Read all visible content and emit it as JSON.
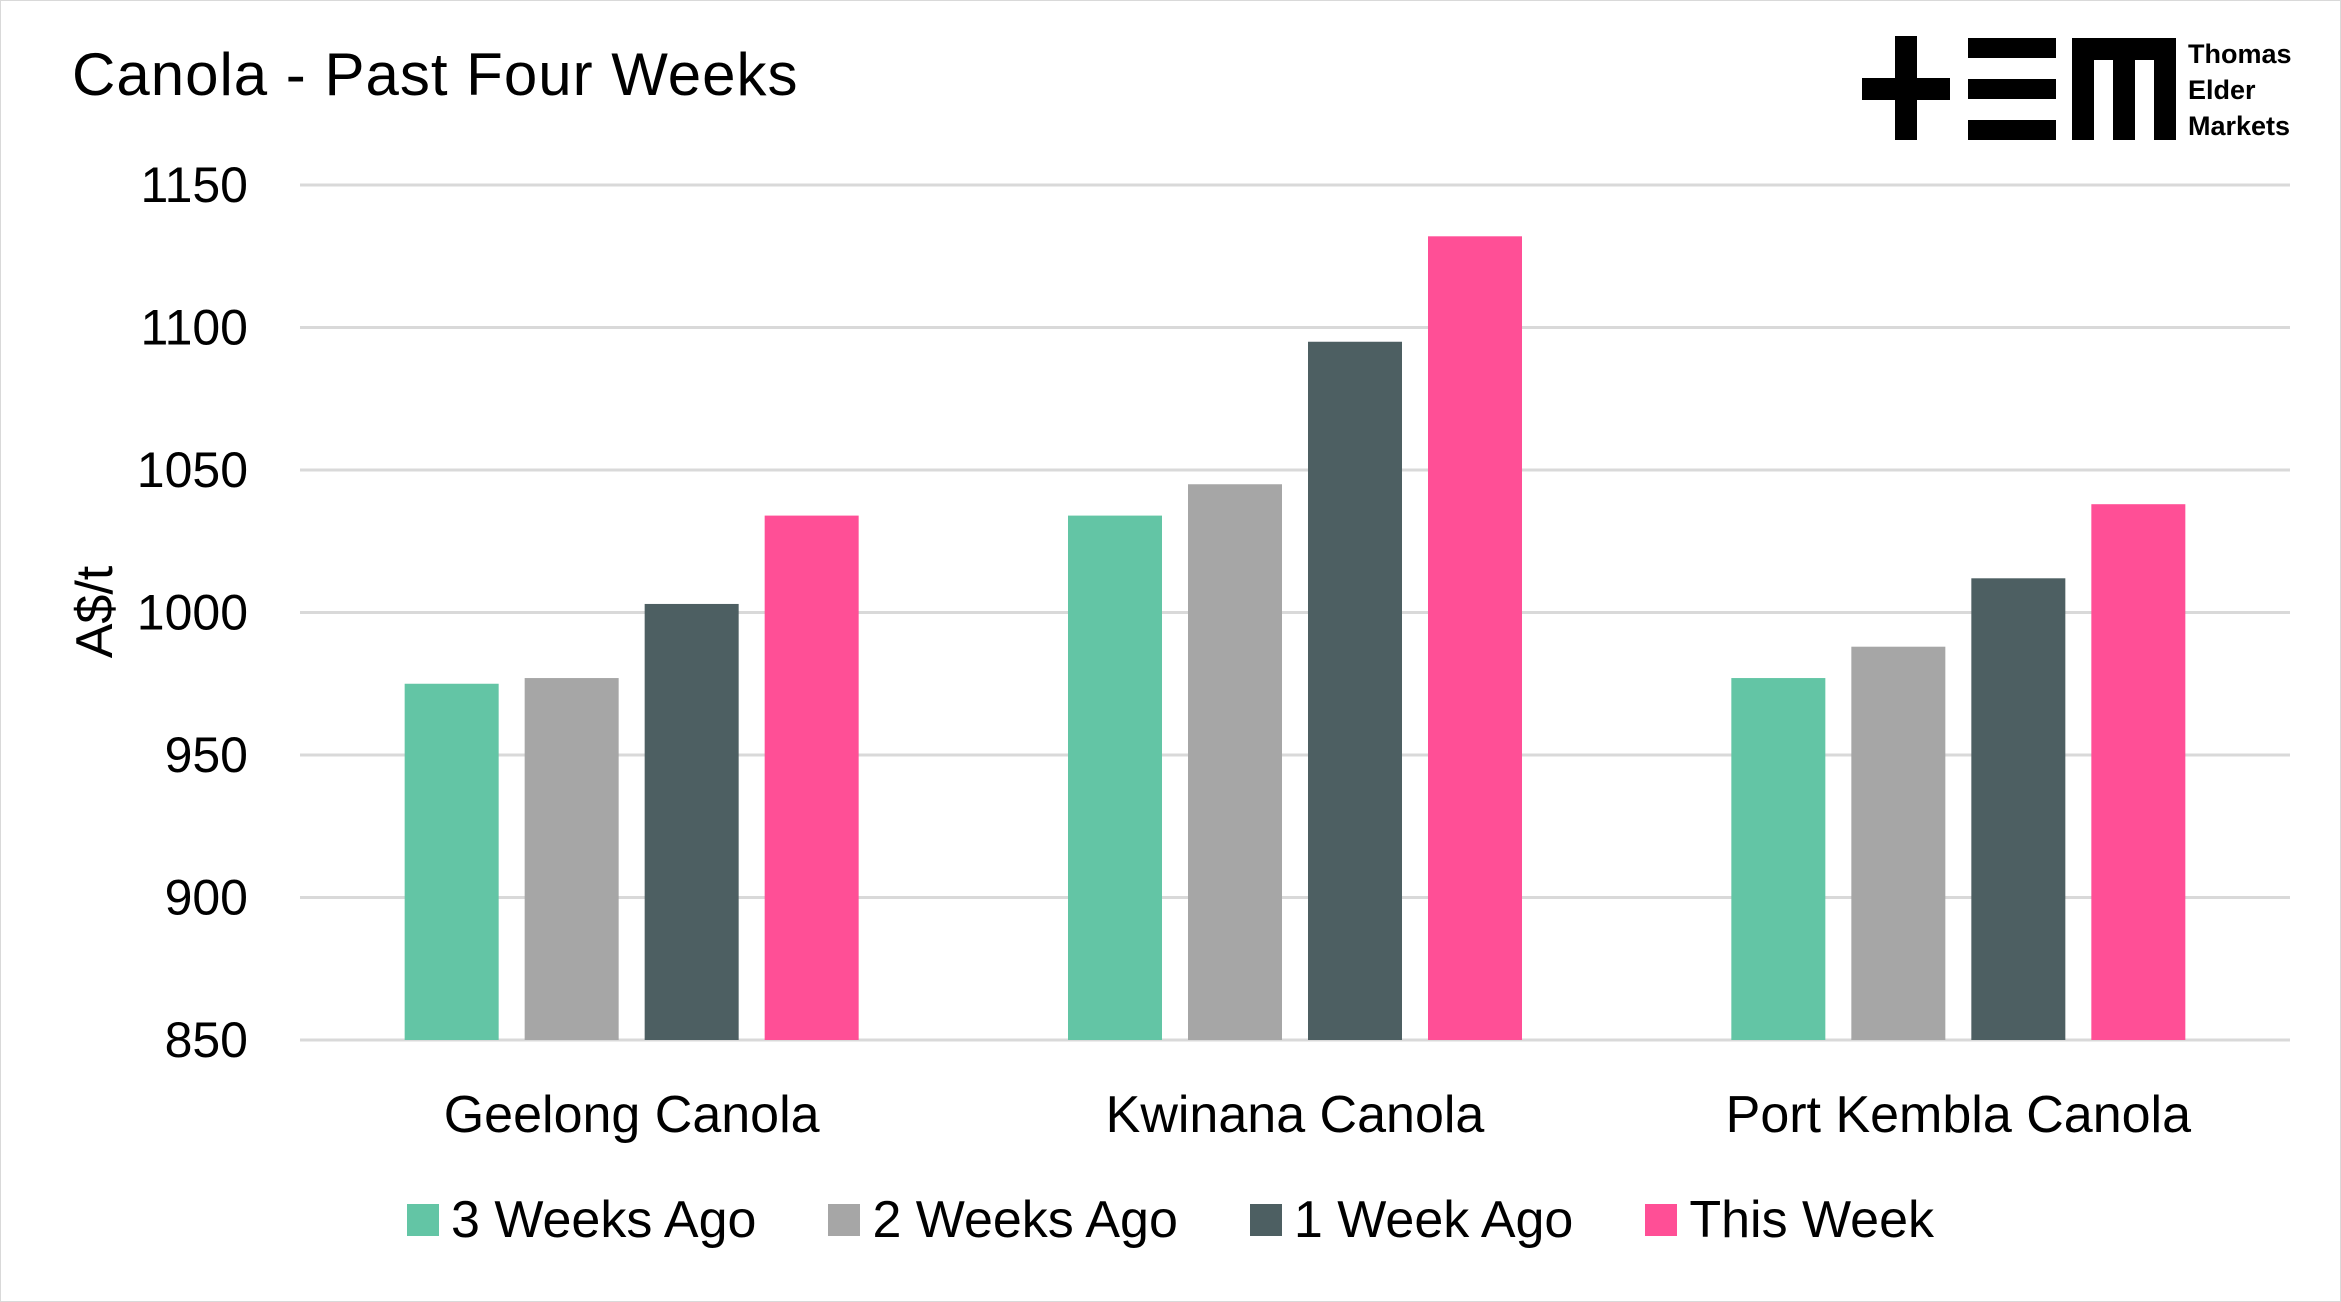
{
  "header": {
    "title": "Canola - Past Four Weeks",
    "logo_lines": [
      "Thomas",
      "Elder",
      "Markets"
    ]
  },
  "chart_data": {
    "type": "bar",
    "title": "Canola - Past Four Weeks",
    "xlabel": "",
    "ylabel": "A$/t",
    "ylim": [
      850,
      1150
    ],
    "yticks": [
      850,
      900,
      950,
      1000,
      1050,
      1100,
      1150
    ],
    "grid": true,
    "legend_position": "bottom",
    "categories": [
      "Geelong Canola",
      "Kwinana Canola",
      "Port Kembla Canola"
    ],
    "series": [
      {
        "name": "3 Weeks Ago",
        "color": "#63c5a5",
        "values": [
          975,
          1034,
          977
        ]
      },
      {
        "name": "2 Weeks Ago",
        "color": "#a6a6a6",
        "values": [
          977,
          1045,
          988
        ]
      },
      {
        "name": "1 Week Ago",
        "color": "#4d5f62",
        "values": [
          1003,
          1095,
          1012
        ]
      },
      {
        "name": "This Week",
        "color": "#ff4f96",
        "values": [
          1034,
          1132,
          1038
        ]
      }
    ]
  }
}
